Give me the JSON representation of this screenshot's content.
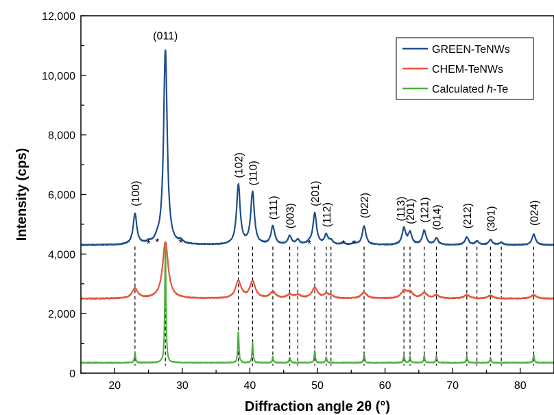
{
  "chart_data": {
    "type": "line",
    "xlabel": "Diffraction angle 2θ (°)",
    "ylabel": "Intensity (cps)",
    "xlim": [
      15,
      85
    ],
    "ylim": [
      0,
      12000
    ],
    "xticks": [
      20,
      30,
      40,
      50,
      60,
      70,
      80
    ],
    "yticks": [
      0,
      2000,
      4000,
      6000,
      8000,
      10000,
      12000
    ],
    "yticklabels": [
      "0",
      "2,000",
      "4,000",
      "6,000",
      "8,000",
      "10,000",
      "12,000"
    ],
    "legend_position": "top-right",
    "series": [
      {
        "name": "GREEN-TeNWs",
        "color": "#1f4e8c",
        "baseline": 4300,
        "peaks": [
          [
            23.0,
            5330
          ],
          [
            25.0,
            4360
          ],
          [
            26.3,
            4420
          ],
          [
            27.5,
            10850
          ],
          [
            29.8,
            4400
          ],
          [
            38.3,
            6300
          ],
          [
            40.4,
            6050
          ],
          [
            43.4,
            4920
          ],
          [
            45.9,
            4580
          ],
          [
            47.1,
            4450
          ],
          [
            48.8,
            4360
          ],
          [
            49.6,
            5350
          ],
          [
            51.3,
            4620
          ],
          [
            52.0,
            4420
          ],
          [
            53.8,
            4360
          ],
          [
            55.4,
            4350
          ],
          [
            56.9,
            4930
          ],
          [
            62.8,
            4850
          ],
          [
            63.7,
            4700
          ],
          [
            65.8,
            4780
          ],
          [
            67.6,
            4520
          ],
          [
            72.1,
            4560
          ],
          [
            73.6,
            4420
          ],
          [
            75.6,
            4470
          ],
          [
            77.2,
            4380
          ],
          [
            82.0,
            4660
          ]
        ]
      },
      {
        "name": "CHEM-TeNWs",
        "color": "#e8543a",
        "baseline": 2500,
        "peaks": [
          [
            23.0,
            2830
          ],
          [
            27.5,
            4400
          ],
          [
            38.3,
            3080
          ],
          [
            40.4,
            3060
          ],
          [
            43.4,
            2710
          ],
          [
            45.9,
            2620
          ],
          [
            47.1,
            2610
          ],
          [
            49.6,
            2850
          ],
          [
            51.3,
            2620
          ],
          [
            52.0,
            2580
          ],
          [
            56.9,
            2710
          ],
          [
            62.8,
            2750
          ],
          [
            63.7,
            2700
          ],
          [
            65.8,
            2680
          ],
          [
            67.6,
            2610
          ],
          [
            72.1,
            2620
          ],
          [
            75.6,
            2600
          ],
          [
            82.0,
            2620
          ]
        ]
      },
      {
        "name": "Calculated h-Te",
        "color": "#4caf3f",
        "baseline": 350,
        "peaks": [
          [
            23.0,
            700
          ],
          [
            27.5,
            4400
          ],
          [
            38.3,
            1400
          ],
          [
            40.4,
            1020
          ],
          [
            43.4,
            560
          ],
          [
            45.9,
            540
          ],
          [
            49.6,
            750
          ],
          [
            51.3,
            540
          ],
          [
            56.9,
            640
          ],
          [
            62.8,
            620
          ],
          [
            63.7,
            560
          ],
          [
            65.8,
            590
          ],
          [
            67.6,
            570
          ],
          [
            72.1,
            580
          ],
          [
            75.6,
            540
          ],
          [
            82.0,
            620
          ]
        ]
      }
    ],
    "reference_lines_x": [
      23.0,
      27.5,
      38.3,
      40.4,
      43.4,
      45.9,
      47.1,
      49.6,
      51.3,
      52.0,
      56.9,
      62.8,
      63.7,
      65.8,
      67.6,
      72.1,
      73.6,
      75.6,
      77.2,
      82.0
    ],
    "peak_labels": [
      {
        "text": "(100)",
        "x": 23.0,
        "y": 5600,
        "rotated": true
      },
      {
        "text": "(011)",
        "x": 27.5,
        "y": 11200,
        "rotated": false
      },
      {
        "text": "(102)",
        "x": 38.3,
        "y": 6550,
        "rotated": true
      },
      {
        "text": "(110)",
        "x": 40.4,
        "y": 6300,
        "rotated": true
      },
      {
        "text": "(111)",
        "x": 43.4,
        "y": 5150,
        "rotated": true
      },
      {
        "text": "(003)",
        "x": 45.9,
        "y": 4850,
        "rotated": true
      },
      {
        "text": "(201)",
        "x": 49.6,
        "y": 5600,
        "rotated": true
      },
      {
        "text": "(112)",
        "x": 51.3,
        "y": 4900,
        "rotated": true
      },
      {
        "text": "(022)",
        "x": 56.9,
        "y": 5200,
        "rotated": true
      },
      {
        "text": "(113)",
        "x": 62.3,
        "y": 5100,
        "rotated": true
      },
      {
        "text": "(201)",
        "x": 63.7,
        "y": 5000,
        "rotated": true
      },
      {
        "text": "(121)",
        "x": 65.8,
        "y": 5050,
        "rotated": true
      },
      {
        "text": "(014)",
        "x": 67.6,
        "y": 4800,
        "rotated": true
      },
      {
        "text": "(212)",
        "x": 72.1,
        "y": 4850,
        "rotated": true
      },
      {
        "text": "(301)",
        "x": 75.6,
        "y": 4750,
        "rotated": true
      },
      {
        "text": "(024)",
        "x": 82.0,
        "y": 4950,
        "rotated": true
      }
    ],
    "star_markers": [
      {
        "text": "*",
        "x": 25.0,
        "y": 4450
      },
      {
        "text": "*",
        "x": 26.3,
        "y": 4500
      },
      {
        "text": "*",
        "x": 29.8,
        "y": 4480
      },
      {
        "text": "*",
        "x": 48.8,
        "y": 4450
      },
      {
        "text": "*",
        "x": 53.8,
        "y": 4450
      },
      {
        "text": "*",
        "x": 55.4,
        "y": 4450
      }
    ],
    "legend": [
      {
        "label": "GREEN-TeNWs",
        "color": "#1f4e8c"
      },
      {
        "label": "CHEM-TeNWs",
        "color": "#e8543a"
      },
      {
        "label_prefix": "Calculated ",
        "label_italic": "h",
        "label_suffix": "-Te",
        "color": "#4caf3f"
      }
    ]
  }
}
